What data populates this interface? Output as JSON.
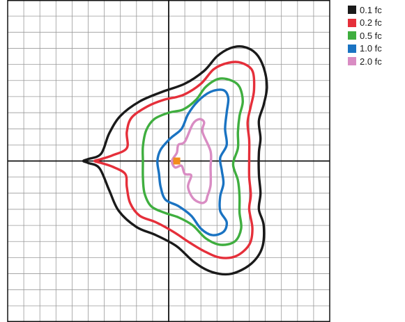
{
  "chart_data": {
    "type": "contour",
    "title": "",
    "xlabel": "",
    "ylabel": "",
    "xlim": [
      -10,
      10
    ],
    "ylim": [
      -10,
      10
    ],
    "grid": true,
    "legend_position": "right",
    "source_marker": {
      "x": 0.5,
      "y": 0,
      "color": "#f28c1c"
    },
    "series": [
      {
        "name": "0.1 fc",
        "color": "#1a1a1a",
        "points": [
          [
            -5.3,
            0
          ],
          [
            -5.0,
            0.12
          ],
          [
            -4.2,
            0.45
          ],
          [
            -3.7,
            1.7
          ],
          [
            -3.0,
            2.8
          ],
          [
            -1.8,
            3.7
          ],
          [
            -0.4,
            4.3
          ],
          [
            1.0,
            4.8
          ],
          [
            2.2,
            5.6
          ],
          [
            3.0,
            6.5
          ],
          [
            3.8,
            7.0
          ],
          [
            4.6,
            7.1
          ],
          [
            5.4,
            6.7
          ],
          [
            5.9,
            5.8
          ],
          [
            6.1,
            4.6
          ],
          [
            5.9,
            3.5
          ],
          [
            5.6,
            2.5
          ],
          [
            5.7,
            1.4
          ],
          [
            5.6,
            0.5
          ],
          [
            5.6,
            -0.8
          ],
          [
            5.7,
            -2.0
          ],
          [
            5.6,
            -3.0
          ],
          [
            5.9,
            -4.0
          ],
          [
            5.8,
            -5.4
          ],
          [
            5.1,
            -6.4
          ],
          [
            3.9,
            -7.0
          ],
          [
            2.7,
            -6.9
          ],
          [
            1.6,
            -6.3
          ],
          [
            0.5,
            -5.3
          ],
          [
            -0.8,
            -4.6
          ],
          [
            -2.0,
            -4.1
          ],
          [
            -3.1,
            -3.1
          ],
          [
            -3.7,
            -1.8
          ],
          [
            -4.3,
            -0.45
          ],
          [
            -5.0,
            -0.12
          ]
        ]
      },
      {
        "name": "0.2 fc",
        "color": "#e52f3a",
        "points": [
          [
            -4.6,
            0
          ],
          [
            -4.2,
            0.12
          ],
          [
            -3.5,
            0.35
          ],
          [
            -2.6,
            0.8
          ],
          [
            -2.6,
            1.8
          ],
          [
            -2.3,
            2.7
          ],
          [
            -1.3,
            3.4
          ],
          [
            -0.3,
            3.8
          ],
          [
            0.9,
            4.1
          ],
          [
            2.0,
            4.8
          ],
          [
            2.8,
            5.7
          ],
          [
            3.7,
            6.1
          ],
          [
            4.5,
            6.1
          ],
          [
            5.2,
            5.6
          ],
          [
            5.3,
            4.4
          ],
          [
            5.1,
            3.4
          ],
          [
            4.9,
            2.4
          ],
          [
            5.0,
            1.3
          ],
          [
            5.0,
            0.2
          ],
          [
            5.0,
            -1.0
          ],
          [
            5.1,
            -2.1
          ],
          [
            5.0,
            -3.0
          ],
          [
            5.2,
            -4.2
          ],
          [
            5.0,
            -5.2
          ],
          [
            4.2,
            -5.9
          ],
          [
            3.2,
            -6.0
          ],
          [
            2.2,
            -5.6
          ],
          [
            1.2,
            -5.0
          ],
          [
            0.3,
            -4.4
          ],
          [
            -0.8,
            -3.8
          ],
          [
            -1.8,
            -3.4
          ],
          [
            -2.4,
            -2.6
          ],
          [
            -2.6,
            -1.6
          ],
          [
            -2.7,
            -0.8
          ],
          [
            -3.5,
            -0.35
          ],
          [
            -4.2,
            -0.12
          ]
        ]
      },
      {
        "name": "0.5 fc",
        "color": "#3fae3f",
        "points": [
          [
            -1.6,
            0
          ],
          [
            -1.6,
            0.9
          ],
          [
            -1.4,
            1.9
          ],
          [
            -0.9,
            2.6
          ],
          [
            0,
            3.0
          ],
          [
            0.9,
            3.2
          ],
          [
            1.7,
            3.8
          ],
          [
            2.3,
            4.6
          ],
          [
            3.1,
            5.1
          ],
          [
            3.9,
            5.0
          ],
          [
            4.4,
            4.6
          ],
          [
            4.6,
            3.7
          ],
          [
            4.4,
            2.8
          ],
          [
            4.3,
            1.8
          ],
          [
            4.3,
            0.8
          ],
          [
            4.0,
            -0.2
          ],
          [
            4.3,
            -1.2
          ],
          [
            4.4,
            -2.2
          ],
          [
            4.4,
            -3.2
          ],
          [
            4.5,
            -4.2
          ],
          [
            4.1,
            -5.0
          ],
          [
            3.2,
            -5.2
          ],
          [
            2.3,
            -4.8
          ],
          [
            1.5,
            -4.0
          ],
          [
            0.6,
            -3.5
          ],
          [
            -0.3,
            -3.2
          ],
          [
            -1.1,
            -2.8
          ],
          [
            -1.5,
            -2.0
          ],
          [
            -1.6,
            -1.0
          ]
        ]
      },
      {
        "name": "1.0 fc",
        "color": "#1a73c2",
        "points": [
          [
            -0.7,
            0
          ],
          [
            -0.5,
            0.7
          ],
          [
            0.1,
            1.4
          ],
          [
            0.8,
            2.0
          ],
          [
            1.2,
            2.9
          ],
          [
            1.8,
            3.7
          ],
          [
            2.6,
            4.3
          ],
          [
            3.4,
            4.4
          ],
          [
            3.7,
            3.9
          ],
          [
            3.6,
            3.0
          ],
          [
            3.5,
            2.0
          ],
          [
            3.6,
            1.0
          ],
          [
            3.2,
            0.2
          ],
          [
            3.3,
            -0.6
          ],
          [
            3.4,
            -1.4
          ],
          [
            3.2,
            -2.2
          ],
          [
            3.2,
            -3.1
          ],
          [
            3.6,
            -3.8
          ],
          [
            3.4,
            -4.4
          ],
          [
            2.7,
            -4.6
          ],
          [
            2.0,
            -4.2
          ],
          [
            1.4,
            -3.4
          ],
          [
            0.6,
            -2.8
          ],
          [
            -0.2,
            -2.4
          ],
          [
            -0.5,
            -1.6
          ],
          [
            -0.6,
            -0.8
          ]
        ]
      },
      {
        "name": "2.0 fc",
        "color": "#d98cc3",
        "points": [
          [
            0.2,
            0
          ],
          [
            0.5,
            0.5
          ],
          [
            0.6,
            1.0
          ],
          [
            1.0,
            1.2
          ],
          [
            1.5,
            2.3
          ],
          [
            1.9,
            2.6
          ],
          [
            2.2,
            2.4
          ],
          [
            2.1,
            1.8
          ],
          [
            2.6,
            0.6
          ],
          [
            2.6,
            -0.4
          ],
          [
            2.6,
            -1.5
          ],
          [
            2.4,
            -2.2
          ],
          [
            2.3,
            -2.5
          ],
          [
            2.0,
            -2.6
          ],
          [
            1.5,
            -2.3
          ],
          [
            1.2,
            -1.6
          ],
          [
            1.4,
            -0.9
          ],
          [
            1.0,
            -0.8
          ],
          [
            0.8,
            -0.3
          ],
          [
            0.4,
            -0.4
          ]
        ]
      }
    ]
  }
}
